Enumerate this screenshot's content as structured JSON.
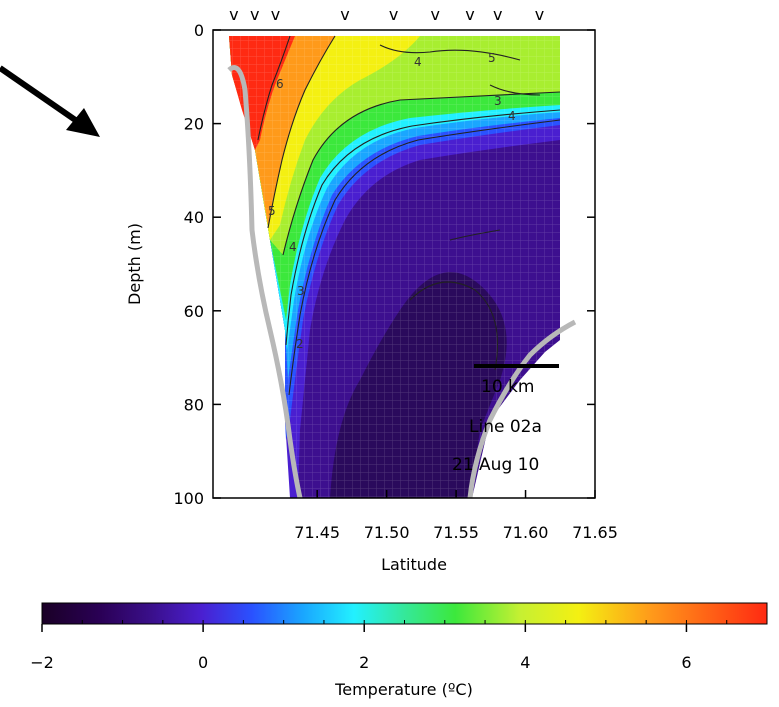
{
  "chart_data": {
    "type": "heatmap",
    "title": "",
    "xlabel": "Latitude",
    "ylabel": "Depth (m)",
    "x_ticks": [
      "71.45",
      "71.50",
      "71.55",
      "71.60",
      "71.65"
    ],
    "y_ticks": [
      "0",
      "20",
      "40",
      "60",
      "80",
      "100"
    ],
    "xlim": [
      71.375,
      71.65
    ],
    "ylim": [
      0,
      100
    ],
    "y_inverted": true,
    "contour_levels": [
      2,
      3,
      4,
      5,
      6
    ],
    "contour_labels": [
      "6",
      "4",
      "5",
      "4",
      "3",
      "2",
      "5",
      "4",
      "3"
    ],
    "station_marker": "v",
    "station_latitudes": [
      71.39,
      71.405,
      71.42,
      71.47,
      71.505,
      71.535,
      71.56,
      71.58,
      71.61
    ],
    "annotations": {
      "scale_bar": "10 km",
      "line": "Line 02a",
      "date": "21 Aug 10"
    },
    "colorbar": {
      "label": "Temperature (ºC)",
      "ticks": [
        "−2",
        "0",
        "2",
        "4",
        "6"
      ],
      "range": [
        -2,
        7
      ],
      "colors": [
        "#1a0026",
        "#2a0055",
        "#3a0f8a",
        "#4a1fd0",
        "#2a52ff",
        "#1aa6ff",
        "#22f0ff",
        "#35e89a",
        "#3ce83c",
        "#c6f032",
        "#f4f012",
        "#ff9a1a",
        "#ff2a12"
      ]
    },
    "grid": true,
    "arrow": true
  }
}
